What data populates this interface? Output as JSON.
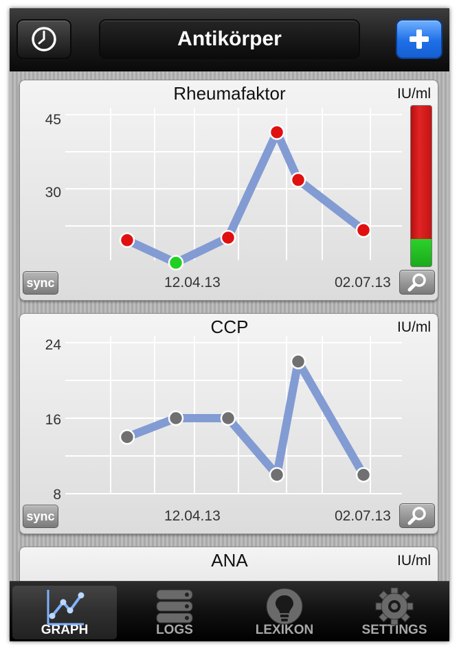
{
  "navbar": {
    "title": "Antikörper",
    "left_icon": "clock-icon",
    "right_icon": "plus-icon"
  },
  "cards": [
    {
      "title": "Rheumafaktor",
      "unit": "IU/ml",
      "y_ticks": [
        "45",
        "30"
      ],
      "date_start": "12.04.13",
      "date_end": "02.07.13",
      "sync_label": "sync",
      "point_colors": [
        "#e01010",
        "#22d022",
        "#e01010",
        "#e01010",
        "#e01010",
        "#e01010"
      ],
      "range_bar": {
        "green_fraction": 0.17,
        "colors": [
          "#d71a1a",
          "#22c522"
        ]
      }
    },
    {
      "title": "CCP",
      "unit": "IU/ml",
      "y_ticks": [
        "24",
        "16",
        "8"
      ],
      "date_start": "12.04.13",
      "date_end": "02.07.13",
      "sync_label": "sync",
      "point_colors": [
        "#707070",
        "#707070",
        "#707070",
        "#707070",
        "#707070",
        "#707070"
      ]
    },
    {
      "title": "ANA",
      "unit": "IU/ml"
    }
  ],
  "chart_data": [
    {
      "type": "line",
      "title": "Rheumafaktor",
      "ylabel": "IU/ml",
      "ylim": [
        18,
        47
      ],
      "x_tick_labels": [
        "12.04.13",
        "02.07.13"
      ],
      "series": [
        {
          "values": [
            22,
            17.5,
            22.5,
            43.5,
            34,
            24
          ]
        }
      ]
    },
    {
      "type": "line",
      "title": "CCP",
      "ylabel": "IU/ml",
      "ylim": [
        8,
        24
      ],
      "x_tick_labels": [
        "12.04.13",
        "02.07.13"
      ],
      "series": [
        {
          "values": [
            14,
            16,
            16,
            10,
            22,
            10
          ]
        }
      ]
    }
  ],
  "tabbar": {
    "tabs": [
      {
        "label": "GRAPH",
        "icon": "graph-icon",
        "active": true
      },
      {
        "label": "LOGS",
        "icon": "logs-icon",
        "active": false
      },
      {
        "label": "LEXIKON",
        "icon": "lightbulb-icon",
        "active": false
      },
      {
        "label": "SETTINGS",
        "icon": "gear-icon",
        "active": false
      }
    ]
  }
}
